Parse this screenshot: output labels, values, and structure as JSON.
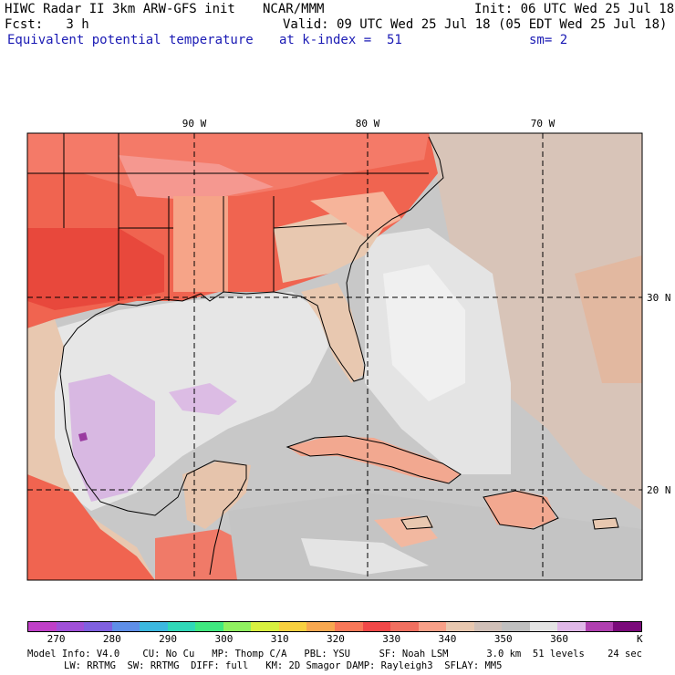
{
  "header": {
    "left_line1": "HIWC Radar II 3km ARW-GFS init",
    "center_line1": "NCAR/MMM",
    "right_line1": "Init: 06 UTC Wed 25 Jul 18",
    "left_line2": "Fcst:   3 h",
    "right_line2": "Valid: 09 UTC Wed 25 Jul 18 (05 EDT Wed 25 Jul 18)",
    "field_name": "Equivalent potential temperature",
    "level": "at k-index =  51",
    "smoothing": "sm= 2"
  },
  "map": {
    "lon_labels": [
      "90 W",
      "80 W",
      "70 W"
    ],
    "lat_labels": [
      "30 N",
      "20 N"
    ]
  },
  "colorbar": {
    "colors": [
      "#c040c8",
      "#a050d8",
      "#8060e0",
      "#5f8fe8",
      "#3cb8e0",
      "#30d8b8",
      "#40e880",
      "#90f060",
      "#d8f040",
      "#f8d040",
      "#f8a850",
      "#f87858",
      "#f04848",
      "#f07060",
      "#f8a088",
      "#e8c8b0",
      "#d0c0b8",
      "#c0c0c0",
      "#e4e4e4",
      "#e0b8e8",
      "#b040b0",
      "#7a0a7a"
    ],
    "labels": [
      "270",
      "280",
      "290",
      "300",
      "310",
      "320",
      "330",
      "340",
      "350",
      "360"
    ],
    "unit": "K"
  },
  "footer": {
    "line1_left": "Model Info: V4.0    CU: No Cu   MP: Thomp C/A   PBL: YSU     SF: Noah LSM",
    "line1_right": "3.0 km  51 levels    24 sec",
    "line2": "LW: RRTMG  SW: RRTMG  DIFF: full   KM: 2D Smagor DAMP: Rayleigh3  SFLAY: MM5"
  }
}
